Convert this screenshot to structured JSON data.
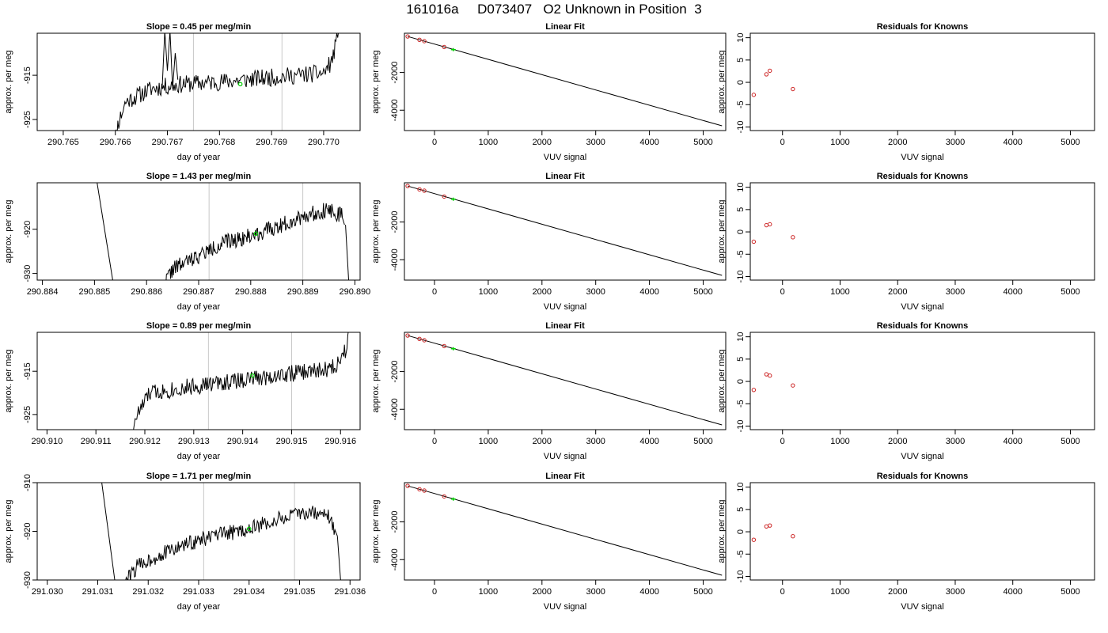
{
  "figure_title": "161016a     D073407   O2 Unknown in Position  3",
  "colors": {
    "trace": "#000000",
    "marker_known": "#cd2626",
    "marker_unknown": "#00cd00",
    "vline": "#c8c8c8"
  },
  "chart_data": [
    {
      "type": "line",
      "panel": "trace",
      "row": 1,
      "title": "Slope =  0.45  per meg/min",
      "xlabel": "day of year",
      "ylabel": "approx. per meg",
      "xlim": [
        290.7645,
        290.7707
      ],
      "ylim": [
        -927.5,
        -905.5
      ],
      "xticks": [
        290.765,
        290.766,
        290.767,
        290.768,
        290.769,
        290.77
      ],
      "xtick_labels": [
        "290.765",
        "290.766",
        "290.767",
        "290.768",
        "290.769",
        "290.770"
      ],
      "yticks": [
        -915,
        -925
      ],
      "ytick_labels": [
        "-915",
        "-925"
      ],
      "vlines": [
        290.7675,
        290.7692
      ],
      "green_point": {
        "x": 290.7684,
        "y": -917
      },
      "trace_seed": 11,
      "noise": 2.0,
      "anchors": [
        [
          290.76593,
          -935
        ],
        [
          290.76605,
          -926
        ],
        [
          290.7662,
          -921
        ],
        [
          290.7667,
          -918
        ],
        [
          290.7673,
          -917
        ],
        [
          290.768,
          -916.5
        ],
        [
          290.769,
          -915.5
        ],
        [
          290.77,
          -914.5
        ],
        [
          290.77015,
          -912
        ],
        [
          290.77028,
          -906
        ],
        [
          290.77032,
          -900
        ]
      ],
      "spike": {
        "x": [
          290.7669,
          290.76695,
          290.767,
          290.76705,
          290.7671,
          290.76715,
          290.7672
        ],
        "y": [
          -918,
          -905,
          -914,
          -905,
          -918,
          -910,
          -916
        ]
      }
    },
    {
      "type": "scatter",
      "panel": "fit",
      "row": 1,
      "title": "Linear Fit",
      "xlabel": "VUV signal",
      "ylabel": "approx. per meg",
      "xlim": [
        -560,
        5420
      ],
      "ylim": [
        -5080,
        80
      ],
      "xticks": [
        0,
        1000,
        2000,
        3000,
        4000,
        5000
      ],
      "xtick_labels": [
        "0",
        "1000",
        "2000",
        "3000",
        "4000",
        "5000"
      ],
      "yticks": [
        -2000,
        -4000
      ],
      "ytick_labels": [
        "-2000",
        "-4000"
      ],
      "fit_line": {
        "x": [
          -500,
          5350
        ],
        "y": [
          -90,
          -4830
        ]
      },
      "knowns": [
        {
          "x": -500,
          "y": -90
        },
        {
          "x": -280,
          "y": -270
        },
        {
          "x": -190,
          "y": -340
        },
        {
          "x": 180,
          "y": -650
        }
      ],
      "unknown": {
        "x": 350,
        "y": -790
      }
    },
    {
      "type": "scatter",
      "panel": "residuals",
      "row": 1,
      "title": "Residuals for Knowns",
      "xlabel": "VUV signal",
      "ylabel": "approx. per meg",
      "xlim": [
        -560,
        5420
      ],
      "ylim": [
        -10.8,
        11
      ],
      "xticks": [
        0,
        1000,
        2000,
        3000,
        4000,
        5000
      ],
      "xtick_labels": [
        "0",
        "1000",
        "2000",
        "3000",
        "4000",
        "5000"
      ],
      "yticks": [
        10,
        5,
        0,
        -5,
        -10
      ],
      "ytick_labels": [
        "10",
        "5",
        "0",
        "-5",
        "-10"
      ],
      "points": [
        {
          "x": -500,
          "y": -2.8
        },
        {
          "x": -280,
          "y": 1.8
        },
        {
          "x": -220,
          "y": 2.6
        },
        {
          "x": 180,
          "y": -1.5
        }
      ]
    },
    {
      "type": "line",
      "panel": "trace",
      "row": 2,
      "title": "Slope =  1.43  per meg/min",
      "xlabel": "day of year",
      "ylabel": "approx. per meg",
      "xlim": [
        290.8839,
        290.8901
      ],
      "ylim": [
        -931.5,
        -909.5
      ],
      "xticks": [
        290.884,
        290.885,
        290.886,
        290.887,
        290.888,
        290.889,
        290.89
      ],
      "xtick_labels": [
        "290.884",
        "290.885",
        "290.886",
        "290.887",
        "290.888",
        "290.889",
        "290.890"
      ],
      "yticks": [
        -920,
        -930
      ],
      "ytick_labels": [
        "-920",
        "-930"
      ],
      "vlines": [
        290.8872,
        290.889
      ],
      "green_point": {
        "x": 290.8881,
        "y": -921
      },
      "trace_seed": 22,
      "noise": 1.8,
      "anchors": [
        [
          290.8863,
          -933
        ],
        [
          290.8865,
          -929
        ],
        [
          290.887,
          -926
        ],
        [
          290.8875,
          -923
        ],
        [
          290.888,
          -921.5
        ],
        [
          290.8885,
          -919.5
        ],
        [
          290.889,
          -917
        ],
        [
          290.8895,
          -915.5
        ],
        [
          290.88975,
          -917
        ],
        [
          290.8898,
          -919
        ]
      ],
      "extra_lines": [
        {
          "x": [
            290.88505,
            290.88535
          ],
          "y": [
            -909.5,
            -931.5
          ]
        },
        {
          "x": [
            290.88982,
            290.88988
          ],
          "y": [
            -919,
            -931.5
          ]
        }
      ]
    },
    {
      "type": "scatter",
      "panel": "fit",
      "row": 2,
      "title": "Linear Fit",
      "xlabel": "VUV signal",
      "ylabel": "approx. per meg",
      "xlim": [
        -560,
        5420
      ],
      "ylim": [
        -5080,
        80
      ],
      "xticks": [
        0,
        1000,
        2000,
        3000,
        4000,
        5000
      ],
      "xtick_labels": [
        "0",
        "1000",
        "2000",
        "3000",
        "4000",
        "5000"
      ],
      "yticks": [
        -2000,
        -4000
      ],
      "ytick_labels": [
        "-2000",
        "-4000"
      ],
      "fit_line": {
        "x": [
          -500,
          5350
        ],
        "y": [
          -90,
          -4830
        ]
      },
      "knowns": [
        {
          "x": -500,
          "y": -90
        },
        {
          "x": -280,
          "y": -270
        },
        {
          "x": -190,
          "y": -340
        },
        {
          "x": 180,
          "y": -650
        }
      ],
      "unknown": {
        "x": 350,
        "y": -790
      }
    },
    {
      "type": "scatter",
      "panel": "residuals",
      "row": 2,
      "title": "Residuals for Knowns",
      "xlabel": "VUV signal",
      "ylabel": "approx. per meg",
      "xlim": [
        -560,
        5420
      ],
      "ylim": [
        -10.8,
        11
      ],
      "xticks": [
        0,
        1000,
        2000,
        3000,
        4000,
        5000
      ],
      "xtick_labels": [
        "0",
        "1000",
        "2000",
        "3000",
        "4000",
        "5000"
      ],
      "yticks": [
        10,
        5,
        0,
        -5,
        -10
      ],
      "ytick_labels": [
        "10",
        "5",
        "0",
        "-5",
        "-10"
      ],
      "points": [
        {
          "x": -500,
          "y": -2.2
        },
        {
          "x": -280,
          "y": 1.5
        },
        {
          "x": -220,
          "y": 1.7
        },
        {
          "x": 180,
          "y": -1.2
        }
      ]
    },
    {
      "type": "line",
      "panel": "trace",
      "row": 3,
      "title": "Slope =  0.89  per meg/min",
      "xlabel": "day of year",
      "ylabel": "approx. per meg",
      "xlim": [
        290.9098,
        290.9164
      ],
      "ylim": [
        -928.5,
        -906
      ],
      "xticks": [
        290.91,
        290.911,
        290.912,
        290.913,
        290.914,
        290.915,
        290.916
      ],
      "xtick_labels": [
        "290.910",
        "290.911",
        "290.912",
        "290.913",
        "290.914",
        "290.915",
        "290.916"
      ],
      "yticks": [
        -915,
        -925
      ],
      "ytick_labels": [
        "-915",
        "-925"
      ],
      "vlines": [
        290.9133,
        290.915
      ],
      "green_point": {
        "x": 290.9142,
        "y": -916
      },
      "trace_seed": 33,
      "noise": 2.0,
      "anchors": [
        [
          290.91175,
          -930
        ],
        [
          290.9118,
          -926
        ],
        [
          290.9121,
          -920
        ],
        [
          290.913,
          -918.5
        ],
        [
          290.914,
          -917
        ],
        [
          290.915,
          -915.5
        ],
        [
          290.9158,
          -914.5
        ],
        [
          290.91595,
          -913
        ],
        [
          290.9161,
          -910
        ],
        [
          290.9162,
          -903
        ]
      ]
    },
    {
      "type": "scatter",
      "panel": "fit",
      "row": 3,
      "title": "Linear Fit",
      "xlabel": "VUV signal",
      "ylabel": "approx. per meg",
      "xlim": [
        -560,
        5420
      ],
      "ylim": [
        -5080,
        80
      ],
      "xticks": [
        0,
        1000,
        2000,
        3000,
        4000,
        5000
      ],
      "xtick_labels": [
        "0",
        "1000",
        "2000",
        "3000",
        "4000",
        "5000"
      ],
      "yticks": [
        -2000,
        -4000
      ],
      "ytick_labels": [
        "-2000",
        "-4000"
      ],
      "fit_line": {
        "x": [
          -500,
          5350
        ],
        "y": [
          -90,
          -4830
        ]
      },
      "knowns": [
        {
          "x": -500,
          "y": -90
        },
        {
          "x": -280,
          "y": -270
        },
        {
          "x": -190,
          "y": -340
        },
        {
          "x": 180,
          "y": -650
        }
      ],
      "unknown": {
        "x": 350,
        "y": -790
      }
    },
    {
      "type": "scatter",
      "panel": "residuals",
      "row": 3,
      "title": "Residuals for Knowns",
      "xlabel": "VUV signal",
      "ylabel": "approx. per meg",
      "xlim": [
        -560,
        5420
      ],
      "ylim": [
        -10.8,
        11
      ],
      "xticks": [
        0,
        1000,
        2000,
        3000,
        4000,
        5000
      ],
      "xtick_labels": [
        "0",
        "1000",
        "2000",
        "3000",
        "4000",
        "5000"
      ],
      "yticks": [
        10,
        5,
        0,
        -5,
        -10
      ],
      "ytick_labels": [
        "10",
        "5",
        "0",
        "-5",
        "-10"
      ],
      "points": [
        {
          "x": -500,
          "y": -1.9
        },
        {
          "x": -280,
          "y": 1.6
        },
        {
          "x": -220,
          "y": 1.3
        },
        {
          "x": 180,
          "y": -0.9
        }
      ]
    },
    {
      "type": "line",
      "panel": "trace",
      "row": 4,
      "title": "Slope =  1.71  per meg/min",
      "xlabel": "day of year",
      "ylabel": "approx. per meg",
      "xlim": [
        291.0298,
        291.0362
      ],
      "ylim": [
        -930,
        -910
      ],
      "xticks": [
        291.03,
        291.031,
        291.032,
        291.033,
        291.034,
        291.035,
        291.036
      ],
      "xtick_labels": [
        "291.030",
        "291.031",
        "291.032",
        "291.033",
        "291.034",
        "291.035",
        "291.036"
      ],
      "yticks": [
        -910,
        -920,
        -930
      ],
      "ytick_labels": [
        "-910",
        "-920",
        "-930"
      ],
      "vlines": [
        291.0331,
        291.0349
      ],
      "green_point": {
        "x": 291.034,
        "y": -919.5
      },
      "trace_seed": 44,
      "noise": 1.6,
      "anchors": [
        [
          291.0315,
          -931
        ],
        [
          291.0318,
          -927
        ],
        [
          291.0322,
          -925
        ],
        [
          291.0328,
          -922.5
        ],
        [
          291.0333,
          -921
        ],
        [
          291.034,
          -919.5
        ],
        [
          291.0346,
          -917.5
        ],
        [
          291.0352,
          -916
        ],
        [
          291.0356,
          -917
        ],
        [
          291.03575,
          -921
        ]
      ],
      "extra_lines": [
        {
          "x": [
            291.03108,
            291.03135
          ],
          "y": [
            -910,
            -931
          ]
        },
        {
          "x": [
            291.03575,
            291.03582
          ],
          "y": [
            -921,
            -931
          ]
        }
      ]
    },
    {
      "type": "scatter",
      "panel": "fit",
      "row": 4,
      "title": "Linear Fit",
      "xlabel": "VUV signal",
      "ylabel": "approx. per meg",
      "xlim": [
        -560,
        5420
      ],
      "ylim": [
        -5080,
        80
      ],
      "xticks": [
        0,
        1000,
        2000,
        3000,
        4000,
        5000
      ],
      "xtick_labels": [
        "0",
        "1000",
        "2000",
        "3000",
        "4000",
        "5000"
      ],
      "yticks": [
        -2000,
        -4000
      ],
      "ytick_labels": [
        "-2000",
        "-4000"
      ],
      "fit_line": {
        "x": [
          -500,
          5350
        ],
        "y": [
          -90,
          -4830
        ]
      },
      "knowns": [
        {
          "x": -500,
          "y": -90
        },
        {
          "x": -280,
          "y": -270
        },
        {
          "x": -190,
          "y": -340
        },
        {
          "x": 180,
          "y": -650
        }
      ],
      "unknown": {
        "x": 350,
        "y": -790
      }
    },
    {
      "type": "scatter",
      "panel": "residuals",
      "row": 4,
      "title": "Residuals for Knowns",
      "xlabel": "VUV signal",
      "ylabel": "approx. per meg",
      "xlim": [
        -560,
        5420
      ],
      "ylim": [
        -10.8,
        11
      ],
      "xticks": [
        0,
        1000,
        2000,
        3000,
        4000,
        5000
      ],
      "xtick_labels": [
        "0",
        "1000",
        "2000",
        "3000",
        "4000",
        "5000"
      ],
      "yticks": [
        10,
        5,
        0,
        -5,
        -10
      ],
      "ytick_labels": [
        "10",
        "5",
        "0",
        "-5",
        "-10"
      ],
      "points": [
        {
          "x": -500,
          "y": -1.8
        },
        {
          "x": -280,
          "y": 1.2
        },
        {
          "x": -220,
          "y": 1.4
        },
        {
          "x": 180,
          "y": -1.0
        }
      ]
    }
  ]
}
